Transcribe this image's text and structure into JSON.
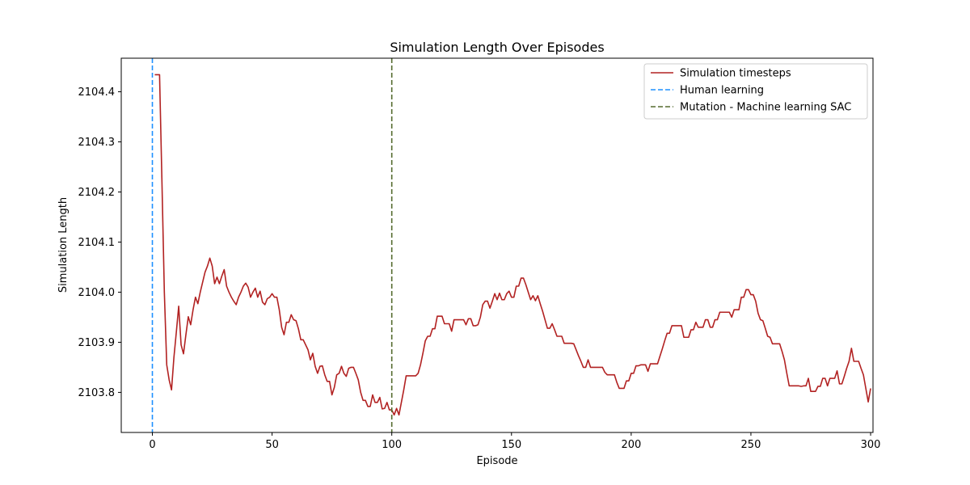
{
  "chart_data": {
    "type": "line",
    "title": "Simulation Length Over Episodes",
    "xlabel": "Episode",
    "ylabel": "Simulation Length",
    "xlim": [
      -13,
      301
    ],
    "ylim": [
      2103.72,
      2104.467
    ],
    "xticks": [
      0,
      50,
      100,
      150,
      200,
      250,
      300
    ],
    "yticks": [
      2103.8,
      2103.9,
      2104.0,
      2104.1,
      2104.2,
      2104.3,
      2104.4
    ],
    "ytick_labels": [
      "2103.8",
      "2103.9",
      "2104.0",
      "2104.1",
      "2104.2",
      "2104.3",
      "2104.4"
    ],
    "grid": false,
    "legend_position": "top-right",
    "series": [
      {
        "name": "Simulation timesteps",
        "color": "#b22222",
        "style": "solid",
        "x": [
          1,
          2,
          3,
          4,
          5,
          6,
          7,
          8,
          9,
          10,
          11,
          12,
          13,
          14,
          15,
          16,
          17,
          18,
          19,
          20,
          21,
          22,
          23,
          24,
          25,
          26,
          27,
          28,
          29,
          30,
          31,
          32,
          33,
          34,
          35,
          36,
          37,
          38,
          39,
          40,
          41,
          42,
          43,
          44,
          45,
          46,
          47,
          48,
          49,
          50,
          51,
          52,
          53,
          54,
          55,
          56,
          57,
          58,
          59,
          60,
          61,
          62,
          63,
          64,
          65,
          66,
          67,
          68,
          69,
          70,
          71,
          72,
          73,
          74,
          75,
          76,
          77,
          78,
          79,
          80,
          81,
          82,
          83,
          84,
          85,
          86,
          87,
          88,
          89,
          90,
          91,
          92,
          93,
          94,
          95,
          96,
          97,
          98,
          99,
          100,
          101,
          102,
          103,
          104,
          105,
          106,
          107,
          108,
          109,
          110,
          111,
          112,
          113,
          114,
          115,
          116,
          117,
          118,
          119,
          120,
          121,
          122,
          123,
          124,
          125,
          126,
          127,
          128,
          129,
          130,
          131,
          132,
          133,
          134,
          135,
          136,
          137,
          138,
          139,
          140,
          141,
          142,
          143,
          144,
          145,
          146,
          147,
          148,
          149,
          150,
          151,
          152,
          153,
          154,
          155,
          156,
          157,
          158,
          159,
          160,
          161,
          162,
          163,
          164,
          165,
          166,
          167,
          168,
          169,
          170,
          171,
          172,
          173,
          174,
          175,
          176,
          177,
          178,
          179,
          180,
          181,
          182,
          183,
          184,
          185,
          186,
          187,
          188,
          189,
          190,
          191,
          192,
          193,
          194,
          195,
          196,
          197,
          198,
          199,
          200,
          201,
          202,
          203,
          204,
          205,
          206,
          207,
          208,
          209,
          210,
          211,
          212,
          213,
          214,
          215,
          216,
          217,
          218,
          219,
          220,
          221,
          222,
          223,
          224,
          225,
          226,
          227,
          228,
          229,
          230,
          231,
          232,
          233,
          234,
          235,
          236,
          237,
          238,
          239,
          240,
          241,
          242,
          243,
          244,
          245,
          246,
          247,
          248,
          249,
          250,
          251,
          252,
          253,
          254,
          255,
          256,
          257,
          258,
          259,
          260,
          261,
          262,
          263,
          264,
          265,
          266,
          267,
          268,
          269,
          270,
          271,
          272,
          273,
          274,
          275,
          276,
          277,
          278,
          279,
          280,
          281,
          282,
          283,
          284,
          285,
          286,
          287,
          288,
          289,
          290,
          291,
          292,
          293,
          294,
          295,
          296,
          297,
          298,
          299,
          300
        ],
        "y": [
          2104.434,
          2104.434,
          2104.434,
          2104.22,
          2104.0,
          2103.855,
          2103.825,
          2103.805,
          2103.87,
          2103.92,
          2103.972,
          2103.895,
          2103.877,
          2103.915,
          2103.951,
          2103.935,
          2103.965,
          2103.99,
          2103.977,
          2104.0,
          2104.02,
          2104.04,
          2104.052,
          2104.068,
          2104.052,
          2104.017,
          2104.03,
          2104.017,
          2104.032,
          2104.045,
          2104.012,
          2104.0,
          2103.99,
          2103.982,
          2103.975,
          2103.99,
          2104.0,
          2104.012,
          2104.018,
          2104.01,
          2103.99,
          2104.0,
          2104.008,
          2103.99,
          2104.002,
          2103.98,
          2103.975,
          2103.987,
          2103.99,
          2103.997,
          2103.99,
          2103.99,
          2103.965,
          2103.93,
          2103.915,
          2103.94,
          2103.94,
          2103.955,
          2103.945,
          2103.943,
          2103.927,
          2103.905,
          2103.905,
          2103.895,
          2103.885,
          2103.865,
          2103.878,
          2103.852,
          2103.838,
          2103.852,
          2103.853,
          2103.835,
          2103.822,
          2103.822,
          2103.795,
          2103.81,
          2103.835,
          2103.838,
          2103.852,
          2103.838,
          2103.832,
          2103.848,
          2103.85,
          2103.85,
          2103.838,
          2103.825,
          2103.8,
          2103.784,
          2103.784,
          2103.772,
          2103.772,
          2103.795,
          2103.78,
          2103.78,
          2103.79,
          2103.767,
          2103.768,
          2103.78,
          2103.765,
          2103.765,
          2103.755,
          2103.768,
          2103.755,
          2103.78,
          2103.805,
          2103.833,
          2103.833,
          2103.833,
          2103.833,
          2103.833,
          2103.838,
          2103.855,
          2103.878,
          2103.903,
          2103.912,
          2103.912,
          2103.927,
          2103.927,
          2103.952,
          2103.952,
          2103.952,
          2103.937,
          2103.937,
          2103.937,
          2103.922,
          2103.945,
          2103.945,
          2103.945,
          2103.945,
          2103.945,
          2103.935,
          2103.947,
          2103.947,
          2103.933,
          2103.933,
          2103.935,
          2103.95,
          2103.975,
          2103.982,
          2103.982,
          2103.968,
          2103.982,
          2103.997,
          2103.985,
          2103.998,
          2103.985,
          2103.985,
          2103.997,
          2104.002,
          2103.99,
          2103.99,
          2104.012,
          2104.012,
          2104.028,
          2104.028,
          2104.015,
          2104.0,
          2103.985,
          2103.993,
          2103.983,
          2103.993,
          2103.977,
          2103.962,
          2103.945,
          2103.928,
          2103.928,
          2103.937,
          2103.925,
          2103.912,
          2103.912,
          2103.912,
          2103.898,
          2103.898,
          2103.898,
          2103.898,
          2103.897,
          2103.885,
          2103.873,
          2103.862,
          2103.85,
          2103.85,
          2103.865,
          2103.85,
          2103.85,
          2103.85,
          2103.85,
          2103.85,
          2103.85,
          2103.84,
          2103.835,
          2103.835,
          2103.835,
          2103.835,
          2103.82,
          2103.808,
          2103.808,
          2103.808,
          2103.823,
          2103.823,
          2103.838,
          2103.838,
          2103.853,
          2103.853,
          2103.855,
          2103.855,
          2103.855,
          2103.842,
          2103.857,
          2103.857,
          2103.857,
          2103.857,
          2103.872,
          2103.887,
          2103.903,
          2103.918,
          2103.918,
          2103.933,
          2103.933,
          2103.933,
          2103.933,
          2103.933,
          2103.91,
          2103.91,
          2103.91,
          2103.925,
          2103.925,
          2103.94,
          2103.93,
          2103.93,
          2103.93,
          2103.945,
          2103.945,
          2103.93,
          2103.93,
          2103.945,
          2103.945,
          2103.96,
          2103.96,
          2103.96,
          2103.96,
          2103.96,
          2103.95,
          2103.965,
          2103.965,
          2103.965,
          2103.99,
          2103.99,
          2104.005,
          2104.005,
          2103.995,
          2103.995,
          2103.982,
          2103.958,
          2103.945,
          2103.943,
          2103.928,
          2103.912,
          2103.91,
          2103.897,
          2103.897,
          2103.897,
          2103.897,
          2103.882,
          2103.865,
          2103.838,
          2103.813,
          2103.813,
          2103.813,
          2103.813,
          2103.813,
          2103.812,
          2103.813,
          2103.813,
          2103.828,
          2103.802,
          2103.802,
          2103.802,
          2103.812,
          2103.812,
          2103.828,
          2103.828,
          2103.813,
          2103.828,
          2103.828,
          2103.828,
          2103.843,
          2103.817,
          2103.817,
          2103.832,
          2103.848,
          2103.862,
          2103.888,
          2103.862,
          2103.862,
          2103.862,
          2103.848,
          2103.835,
          2103.808,
          2103.781,
          2103.808
        ]
      },
      {
        "name": "Human learning",
        "color": "#1e90ff",
        "style": "dashed",
        "x_value": 0
      },
      {
        "name": "Mutation - Machine learning SAC",
        "color": "#556b2f",
        "style": "dashed",
        "x_value": 100
      }
    ]
  }
}
